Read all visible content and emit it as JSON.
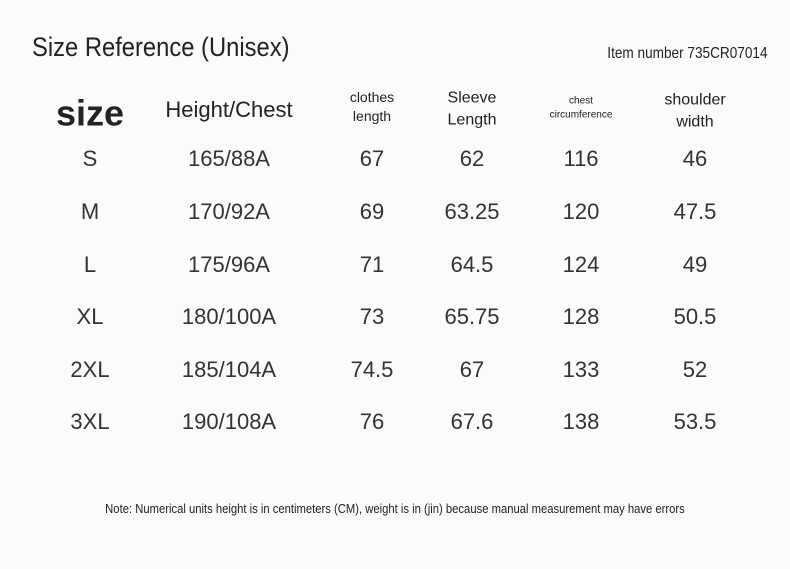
{
  "header": {
    "title": "Size Reference (Unisex)",
    "item_number": "Item number 735CR07014"
  },
  "table": {
    "columns": [
      "size",
      "Height/Chest",
      "clothes length",
      "Sleeve Length",
      "chest circumference",
      "shoulder width"
    ],
    "rows": [
      [
        "S",
        "165/88A",
        "67",
        "62",
        "116",
        "46"
      ],
      [
        "M",
        "170/92A",
        "69",
        "63.25",
        "120",
        "47.5"
      ],
      [
        "L",
        "175/96A",
        "71",
        "64.5",
        "124",
        "49"
      ],
      [
        "XL",
        "180/100A",
        "73",
        "65.75",
        "128",
        "50.5"
      ],
      [
        "2XL",
        "185/104A",
        "74.5",
        "67",
        "133",
        "52"
      ],
      [
        "3XL",
        "190/108A",
        "76",
        "67.6",
        "138",
        "53.5"
      ]
    ]
  },
  "note": "Note: Numerical units height is in centimeters (CM), weight is in (jin) because manual measurement may have errors"
}
